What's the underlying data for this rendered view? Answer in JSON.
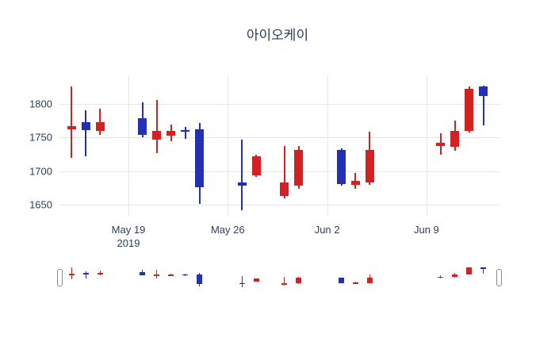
{
  "title": "아이오케이",
  "chart_data": {
    "type": "candlestick",
    "title": "아이오케이",
    "xlabel": "",
    "ylabel": "",
    "grid": true,
    "legend": "none",
    "up_color": "#d42020",
    "down_color": "#2130b4",
    "grid_color": "#e6e6e6",
    "axis_label_color": "#2a3f5f",
    "ylim": [
      1634,
      1842
    ],
    "yticks": [
      1650,
      1700,
      1750,
      1800
    ],
    "xticks": [
      {
        "label": "May 19",
        "sublabel": "2019",
        "day": 4
      },
      {
        "label": "May 26",
        "sublabel": "",
        "day": 11
      },
      {
        "label": "Jun 2",
        "sublabel": "",
        "day": 18
      },
      {
        "label": "Jun 9",
        "sublabel": "",
        "day": 25
      }
    ],
    "candles": [
      {
        "date": "May 15",
        "day": 0,
        "open": 1762,
        "high": 1825,
        "low": 1720,
        "close": 1767
      },
      {
        "date": "May 16",
        "day": 1,
        "open": 1773,
        "high": 1790,
        "low": 1722,
        "close": 1761
      },
      {
        "date": "May 17",
        "day": 2,
        "open": 1760,
        "high": 1793,
        "low": 1754,
        "close": 1773
      },
      {
        "date": "May 20",
        "day": 5,
        "open": 1779,
        "high": 1802,
        "low": 1750,
        "close": 1754
      },
      {
        "date": "May 21",
        "day": 6,
        "open": 1747,
        "high": 1805,
        "low": 1727,
        "close": 1760
      },
      {
        "date": "May 22",
        "day": 7,
        "open": 1753,
        "high": 1769,
        "low": 1744,
        "close": 1760
      },
      {
        "date": "May 23",
        "day": 8,
        "open": 1761,
        "high": 1766,
        "low": 1748,
        "close": 1758
      },
      {
        "date": "May 24",
        "day": 9,
        "open": 1762,
        "high": 1772,
        "low": 1652,
        "close": 1676
      },
      {
        "date": "May 27",
        "day": 12,
        "open": 1683,
        "high": 1747,
        "low": 1642,
        "close": 1679
      },
      {
        "date": "May 28",
        "day": 13,
        "open": 1694,
        "high": 1724,
        "low": 1692,
        "close": 1722
      },
      {
        "date": "May 30",
        "day": 15,
        "open": 1663,
        "high": 1738,
        "low": 1660,
        "close": 1683
      },
      {
        "date": "May 31",
        "day": 16,
        "open": 1679,
        "high": 1738,
        "low": 1674,
        "close": 1732
      },
      {
        "date": "Jun 3",
        "day": 19,
        "open": 1731,
        "high": 1734,
        "low": 1679,
        "close": 1681
      },
      {
        "date": "Jun 4",
        "day": 20,
        "open": 1680,
        "high": 1698,
        "low": 1674,
        "close": 1686
      },
      {
        "date": "Jun 5",
        "day": 21,
        "open": 1683,
        "high": 1759,
        "low": 1680,
        "close": 1731
      },
      {
        "date": "Jun 10",
        "day": 26,
        "open": 1737,
        "high": 1756,
        "low": 1724,
        "close": 1742
      },
      {
        "date": "Jun 11",
        "day": 27,
        "open": 1736,
        "high": 1775,
        "low": 1730,
        "close": 1760
      },
      {
        "date": "Jun 12",
        "day": 28,
        "open": 1760,
        "high": 1825,
        "low": 1757,
        "close": 1822
      },
      {
        "date": "Jun 13",
        "day": 29,
        "open": 1825,
        "high": 1827,
        "low": 1768,
        "close": 1812
      }
    ],
    "rangeslider": {
      "visible": true,
      "ylim": [
        1630,
        1840
      ]
    }
  }
}
